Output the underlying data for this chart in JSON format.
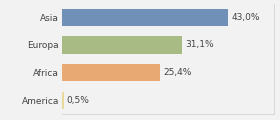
{
  "categories": [
    "Asia",
    "Europa",
    "Africa",
    "America"
  ],
  "values": [
    43.0,
    31.1,
    25.4,
    0.5
  ],
  "labels": [
    "43,0%",
    "31,1%",
    "25,4%",
    "0,5%"
  ],
  "bar_colors": [
    "#7090b8",
    "#a8bb85",
    "#e8aa72",
    "#e8d89a"
  ],
  "background_color": "#f2f2f2",
  "xlim": [
    0,
    55
  ],
  "bar_height": 0.62,
  "label_fontsize": 6.5,
  "tick_fontsize": 6.5
}
